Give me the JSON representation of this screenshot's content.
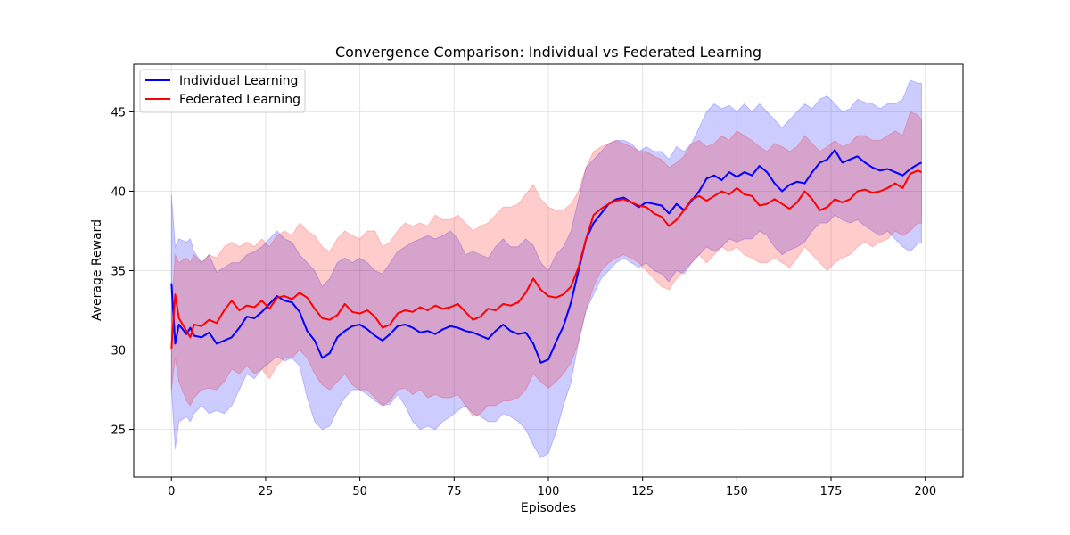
{
  "chart_data": {
    "type": "line",
    "title": "Convergence Comparison: Individual vs Federated Learning",
    "xlabel": "Episodes",
    "ylabel": "Average Reward",
    "xlim": [
      -10,
      210
    ],
    "ylim": [
      22,
      48
    ],
    "xticks": [
      0,
      25,
      50,
      75,
      100,
      125,
      150,
      175,
      200
    ],
    "yticks": [
      25,
      30,
      35,
      40,
      45
    ],
    "grid": true,
    "legend": {
      "placement": "top-left",
      "entries": [
        "Individual Learning",
        "Federated Learning"
      ]
    },
    "series": [
      {
        "name": "Individual Learning",
        "color": "#0000ff",
        "band_color": "#0000ff",
        "x": [
          0,
          1,
          2,
          4,
          5,
          6,
          8,
          10,
          12,
          14,
          16,
          18,
          20,
          22,
          24,
          26,
          28,
          30,
          32,
          34,
          36,
          38,
          40,
          42,
          44,
          46,
          48,
          50,
          52,
          54,
          56,
          58,
          60,
          62,
          64,
          66,
          68,
          70,
          72,
          74,
          76,
          78,
          80,
          82,
          84,
          86,
          88,
          90,
          92,
          94,
          96,
          98,
          100,
          102,
          104,
          106,
          108,
          110,
          112,
          114,
          116,
          118,
          120,
          122,
          124,
          126,
          128,
          130,
          132,
          134,
          136,
          138,
          140,
          142,
          144,
          146,
          148,
          150,
          152,
          154,
          156,
          158,
          160,
          162,
          164,
          166,
          168,
          170,
          172,
          174,
          176,
          178,
          180,
          182,
          184,
          186,
          188,
          190,
          192,
          194,
          196,
          198,
          199
        ],
        "y": [
          34.2,
          30.4,
          31.6,
          31.0,
          31.4,
          30.9,
          30.8,
          31.1,
          30.4,
          30.6,
          30.8,
          31.4,
          32.1,
          32.0,
          32.4,
          32.9,
          33.4,
          33.1,
          33.0,
          32.4,
          31.2,
          30.6,
          29.5,
          29.8,
          30.8,
          31.2,
          31.5,
          31.6,
          31.3,
          30.9,
          30.6,
          31.0,
          31.5,
          31.6,
          31.4,
          31.1,
          31.2,
          31.0,
          31.3,
          31.5,
          31.4,
          31.2,
          31.1,
          30.9,
          30.7,
          31.2,
          31.6,
          31.2,
          31.0,
          31.1,
          30.4,
          29.2,
          29.4,
          30.5,
          31.5,
          33.0,
          35.0,
          37.0,
          38.0,
          38.6,
          39.2,
          39.5,
          39.6,
          39.3,
          39.0,
          39.3,
          39.2,
          39.1,
          38.6,
          39.2,
          38.8,
          39.4,
          40.0,
          40.8,
          41.0,
          40.7,
          41.2,
          40.9,
          41.2,
          41.0,
          41.6,
          41.2,
          40.5,
          40.0,
          40.4,
          40.6,
          40.5,
          41.2,
          41.8,
          42.0,
          42.6,
          41.8,
          42.0,
          42.2,
          41.8,
          41.5,
          41.3,
          41.4,
          41.2,
          41.0,
          41.4,
          41.7,
          41.8
        ],
        "lower": [
          27.5,
          23.8,
          25.5,
          25.8,
          25.5,
          26.0,
          26.5,
          26.0,
          26.2,
          26.0,
          26.5,
          27.5,
          28.5,
          28.2,
          28.8,
          29.2,
          29.6,
          29.3,
          29.5,
          29.0,
          27.0,
          25.5,
          25.0,
          25.2,
          26.2,
          27.0,
          27.5,
          27.5,
          27.2,
          26.8,
          26.5,
          26.6,
          27.2,
          26.5,
          25.5,
          25.0,
          25.2,
          25.0,
          25.5,
          25.8,
          26.2,
          26.5,
          26.0,
          25.8,
          25.5,
          25.5,
          26.0,
          25.8,
          25.5,
          25.0,
          24.0,
          23.2,
          23.5,
          24.8,
          26.5,
          28.0,
          30.5,
          32.5,
          33.5,
          34.5,
          35.0,
          35.5,
          35.8,
          35.5,
          35.2,
          35.5,
          35.0,
          34.8,
          34.3,
          35.0,
          34.8,
          35.5,
          36.0,
          36.5,
          36.2,
          36.5,
          37.0,
          36.8,
          37.0,
          37.0,
          37.5,
          37.2,
          36.5,
          36.0,
          36.3,
          36.5,
          36.8,
          37.5,
          38.0,
          38.0,
          38.5,
          38.2,
          38.0,
          38.2,
          37.8,
          37.5,
          37.2,
          37.5,
          37.0,
          36.5,
          36.2,
          36.7,
          36.8
        ],
        "upper": [
          39.8,
          36.5,
          37.0,
          36.8,
          37.0,
          36.2,
          35.5,
          36.0,
          34.9,
          35.2,
          35.5,
          35.5,
          36.0,
          36.2,
          36.5,
          37.0,
          37.5,
          37.0,
          36.8,
          36.0,
          35.5,
          35.0,
          34.0,
          34.5,
          35.5,
          35.8,
          35.5,
          35.8,
          35.5,
          35.0,
          34.8,
          35.5,
          36.2,
          36.5,
          36.8,
          37.0,
          37.2,
          37.0,
          37.2,
          37.5,
          37.0,
          36.0,
          36.2,
          36.0,
          35.8,
          36.5,
          37.0,
          36.5,
          36.5,
          37.0,
          36.6,
          35.5,
          35.0,
          36.0,
          36.5,
          37.5,
          39.5,
          41.5,
          42.0,
          42.5,
          43.0,
          43.2,
          43.2,
          43.0,
          42.5,
          42.8,
          42.5,
          42.5,
          42.0,
          42.8,
          42.5,
          43.0,
          44.0,
          45.0,
          45.5,
          45.2,
          45.4,
          45.0,
          45.5,
          45.0,
          45.5,
          45.0,
          44.5,
          44.0,
          44.5,
          45.0,
          45.5,
          45.2,
          45.8,
          46.0,
          45.5,
          45.0,
          45.2,
          45.8,
          45.6,
          45.5,
          45.2,
          45.5,
          45.5,
          45.8,
          47.0,
          46.8,
          46.8
        ]
      },
      {
        "name": "Federated Learning",
        "color": "#ff0000",
        "band_color": "#ff0000",
        "x": [
          0,
          1,
          2,
          4,
          5,
          6,
          8,
          10,
          12,
          14,
          16,
          18,
          20,
          22,
          24,
          26,
          28,
          30,
          32,
          34,
          36,
          38,
          40,
          42,
          44,
          46,
          48,
          50,
          52,
          54,
          56,
          58,
          60,
          62,
          64,
          66,
          68,
          70,
          72,
          74,
          76,
          78,
          80,
          82,
          84,
          86,
          88,
          90,
          92,
          94,
          96,
          98,
          100,
          102,
          104,
          106,
          108,
          110,
          112,
          114,
          116,
          118,
          120,
          122,
          124,
          126,
          128,
          130,
          132,
          134,
          136,
          138,
          140,
          142,
          144,
          146,
          148,
          150,
          152,
          154,
          156,
          158,
          160,
          162,
          164,
          166,
          168,
          170,
          172,
          174,
          176,
          178,
          180,
          182,
          184,
          186,
          188,
          190,
          192,
          194,
          196,
          198,
          199
        ],
        "y": [
          30.1,
          33.5,
          32.0,
          31.2,
          30.8,
          31.6,
          31.5,
          31.9,
          31.7,
          32.5,
          33.1,
          32.5,
          32.8,
          32.7,
          33.1,
          32.6,
          33.3,
          33.4,
          33.2,
          33.6,
          33.3,
          32.6,
          32.0,
          31.9,
          32.2,
          32.9,
          32.4,
          32.3,
          32.5,
          32.1,
          31.4,
          31.6,
          32.3,
          32.5,
          32.4,
          32.7,
          32.5,
          32.8,
          32.6,
          32.7,
          32.9,
          32.4,
          31.9,
          32.1,
          32.6,
          32.5,
          32.9,
          32.8,
          33.0,
          33.6,
          34.5,
          33.8,
          33.4,
          33.3,
          33.5,
          34.0,
          35.2,
          37.0,
          38.5,
          38.9,
          39.2,
          39.4,
          39.5,
          39.3,
          39.1,
          39.0,
          38.6,
          38.4,
          37.8,
          38.2,
          38.8,
          39.5,
          39.7,
          39.4,
          39.7,
          40.0,
          39.8,
          40.2,
          39.8,
          39.7,
          39.1,
          39.2,
          39.5,
          39.2,
          38.9,
          39.3,
          40.0,
          39.5,
          38.8,
          39.0,
          39.5,
          39.3,
          39.5,
          40.0,
          40.1,
          39.9,
          40.0,
          40.2,
          40.5,
          40.2,
          41.1,
          41.3,
          41.2
        ],
        "lower": [
          27.5,
          29.5,
          28.0,
          26.8,
          26.5,
          27.0,
          27.5,
          27.6,
          27.5,
          28.0,
          28.8,
          28.5,
          29.0,
          28.5,
          28.8,
          28.2,
          29.0,
          29.5,
          29.5,
          30.0,
          29.5,
          28.5,
          27.8,
          27.5,
          28.0,
          28.5,
          27.8,
          27.5,
          27.5,
          27.0,
          26.5,
          26.8,
          27.5,
          27.6,
          27.2,
          27.5,
          27.0,
          27.2,
          27.0,
          27.0,
          27.2,
          26.5,
          25.8,
          26.0,
          26.5,
          26.5,
          26.8,
          26.8,
          27.0,
          27.5,
          28.5,
          28.0,
          27.6,
          28.0,
          28.5,
          29.2,
          30.5,
          32.5,
          34.0,
          35.0,
          35.5,
          35.8,
          36.0,
          35.8,
          35.5,
          35.0,
          34.5,
          34.0,
          33.8,
          34.5,
          35.0,
          35.5,
          36.0,
          35.5,
          36.0,
          36.5,
          36.2,
          36.5,
          36.0,
          35.8,
          35.5,
          35.5,
          35.8,
          35.5,
          35.2,
          35.8,
          36.5,
          36.0,
          35.5,
          35.0,
          35.5,
          35.8,
          36.0,
          36.5,
          36.8,
          36.5,
          36.8,
          37.0,
          37.5,
          37.2,
          37.5,
          38.0,
          38.0
        ],
        "upper": [
          32.5,
          36.0,
          35.5,
          35.8,
          35.5,
          36.0,
          35.5,
          36.0,
          35.8,
          36.5,
          36.8,
          36.5,
          36.8,
          36.5,
          37.0,
          36.5,
          37.2,
          37.5,
          37.2,
          38.0,
          37.5,
          37.2,
          36.5,
          36.2,
          37.0,
          37.5,
          37.2,
          37.0,
          37.5,
          37.5,
          36.5,
          36.8,
          37.5,
          38.0,
          37.8,
          38.0,
          37.8,
          38.5,
          38.2,
          38.2,
          38.5,
          38.0,
          37.5,
          37.8,
          38.0,
          38.5,
          39.0,
          39.0,
          39.2,
          39.8,
          40.4,
          39.5,
          39.0,
          38.8,
          38.8,
          39.2,
          40.0,
          41.5,
          42.5,
          42.8,
          43.0,
          43.2,
          43.0,
          42.8,
          42.5,
          42.5,
          42.2,
          42.0,
          41.5,
          41.8,
          42.2,
          43.0,
          43.2,
          42.8,
          43.0,
          43.5,
          43.2,
          43.8,
          43.5,
          43.2,
          42.8,
          42.5,
          43.0,
          42.8,
          42.5,
          42.8,
          43.5,
          43.0,
          42.5,
          42.8,
          43.2,
          42.8,
          43.0,
          43.5,
          43.5,
          43.2,
          43.2,
          43.5,
          43.8,
          43.5,
          45.0,
          44.8,
          44.5
        ]
      }
    ]
  }
}
